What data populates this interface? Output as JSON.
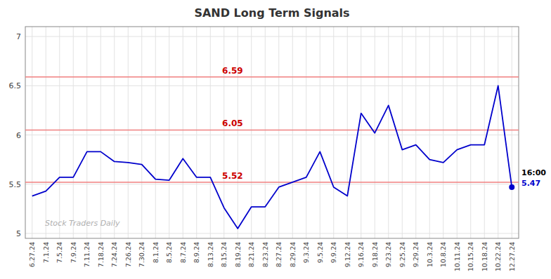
{
  "chart_data": {
    "type": "line",
    "title": "SAND Long Term Signals",
    "categories": [
      "6.27.24",
      "7.1.24",
      "7.5.24",
      "7.9.24",
      "7.11.24",
      "7.18.24",
      "7.24.24",
      "7.26.24",
      "7.30.24",
      "8.1.24",
      "8.5.24",
      "8.7.24",
      "8.9.24",
      "8.13.24",
      "8.15.24",
      "8.19.24",
      "8.21.24",
      "8.23.24",
      "8.27.24",
      "8.29.24",
      "9.3.24",
      "9.5.24",
      "9.9.24",
      "9.12.24",
      "9.16.24",
      "9.18.24",
      "9.23.24",
      "9.25.24",
      "9.29.24",
      "10.3.24",
      "10.8.24",
      "10.11.24",
      "10.15.24",
      "10.18.24",
      "10.22.24",
      "12.27.24"
    ],
    "values": [
      5.38,
      5.43,
      5.57,
      5.57,
      5.83,
      5.83,
      5.73,
      5.72,
      5.7,
      5.55,
      5.54,
      5.76,
      5.57,
      5.57,
      5.26,
      5.05,
      5.27,
      5.27,
      5.47,
      5.52,
      5.57,
      5.83,
      5.47,
      5.38,
      6.22,
      6.02,
      6.3,
      5.85,
      5.9,
      5.75,
      5.72,
      5.85,
      5.9,
      5.9,
      6.5,
      5.47
    ],
    "color": "#0000cc",
    "ylim": [
      4.95,
      7.1
    ],
    "yticks": [
      5,
      5.5,
      6,
      6.5,
      7
    ],
    "grid": true,
    "hlines": [
      {
        "value": 6.59,
        "label": "6.59",
        "color": "#f08080",
        "label_color": "#cc0000"
      },
      {
        "value": 6.05,
        "label": "6.05",
        "color": "#f08080",
        "label_color": "#cc0000"
      },
      {
        "value": 5.52,
        "label": "5.52",
        "color": "#f08080",
        "label_color": "#cc0000"
      }
    ],
    "annotations": [
      {
        "text": "16:00",
        "color": "black"
      },
      {
        "text": "5.47",
        "color": "#0000cc"
      }
    ],
    "watermark": "Stock Traders Daily"
  }
}
